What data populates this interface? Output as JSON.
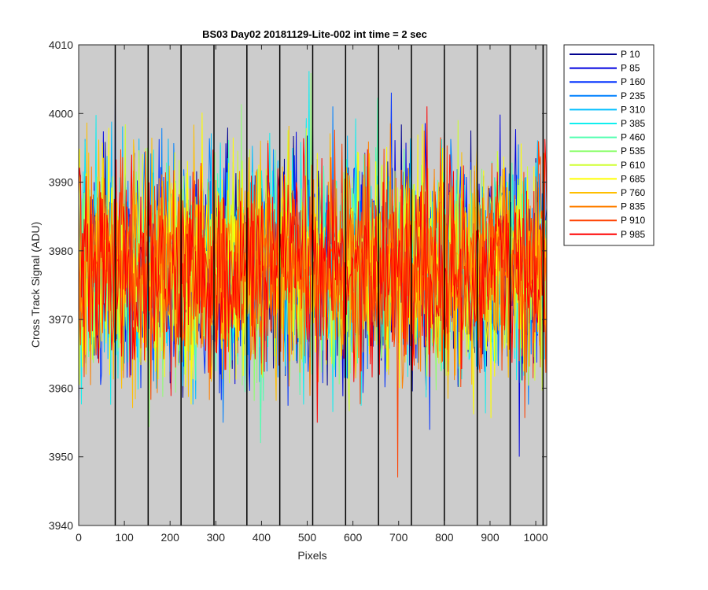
{
  "chart_data": {
    "type": "line",
    "title": "BS03 Day02 20181129-Lite-002 int time = 2 sec",
    "xlabel": "Pixels",
    "ylabel": "Cross Track Signal (ADU)",
    "xlim": [
      0,
      1024
    ],
    "ylim": [
      3940,
      4010
    ],
    "xticks": [
      0,
      100,
      200,
      300,
      400,
      500,
      600,
      700,
      800,
      900,
      1000
    ],
    "yticks": [
      3940,
      3950,
      3960,
      3970,
      3980,
      3990,
      4000,
      4010
    ],
    "xtick_labels": [
      "0",
      "100",
      "200",
      "300",
      "400",
      "500",
      "600",
      "700",
      "800",
      "900",
      "1000"
    ],
    "ytick_labels": [
      "3940",
      "3950",
      "3960",
      "3970",
      "3980",
      "3990",
      "4000",
      "4010"
    ],
    "vertical_dividers": [
      80,
      152,
      224,
      296,
      368,
      440,
      512,
      584,
      656,
      728,
      800,
      872,
      944,
      1016
    ],
    "background_color": "#cccccc",
    "legend_position": "outside-top-right",
    "series_mean": 3977.5,
    "series_noise_std": 7.5,
    "series_range": [
      3947,
      4007
    ],
    "series": [
      {
        "name": "P 10",
        "color": "#00008f"
      },
      {
        "name": "P 85",
        "color": "#0000df"
      },
      {
        "name": "P 160",
        "color": "#0030ff"
      },
      {
        "name": "P 235",
        "color": "#0080ff"
      },
      {
        "name": "P 310",
        "color": "#00bfff"
      },
      {
        "name": "P 385",
        "color": "#10efef"
      },
      {
        "name": "P 460",
        "color": "#50ffaf"
      },
      {
        "name": "P 535",
        "color": "#8fff70"
      },
      {
        "name": "P 610",
        "color": "#cfff30"
      },
      {
        "name": "P 685",
        "color": "#ffff00"
      },
      {
        "name": "P 760",
        "color": "#ffbf00"
      },
      {
        "name": "P 835",
        "color": "#ff8000"
      },
      {
        "name": "P 910",
        "color": "#ff4000"
      },
      {
        "name": "P 985",
        "color": "#ff0000"
      }
    ]
  }
}
